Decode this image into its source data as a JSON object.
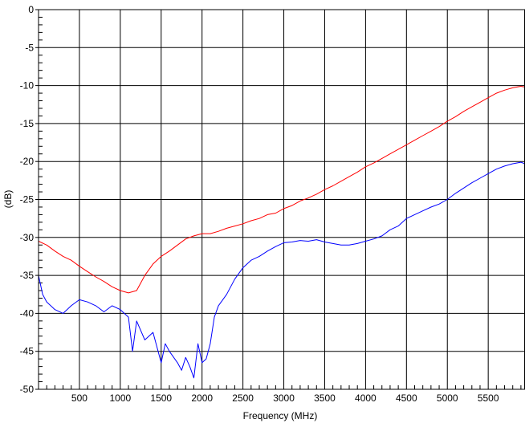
{
  "chart_data": {
    "type": "line",
    "title": "",
    "xlabel": "Frequency (MHz)",
    "ylabel": "(dB)",
    "xlim": [
      0,
      5950
    ],
    "ylim": [
      -50,
      0
    ],
    "x_ticks": [
      500,
      1000,
      1500,
      2000,
      2500,
      3000,
      3500,
      4000,
      4500,
      5000,
      5500
    ],
    "x_tick_labels": [
      "500",
      "1000",
      "1500",
      "2000",
      "2500",
      "3000",
      "3500",
      "4000",
      "4500",
      "5000",
      "5500"
    ],
    "y_ticks": [
      0,
      -5,
      -10,
      -15,
      -20,
      -25,
      -30,
      -35,
      -40,
      -45,
      -50
    ],
    "y_tick_labels": [
      "0",
      "-5",
      "-10",
      "-15",
      "-20",
      "-25",
      "-30",
      "-35",
      "-40",
      "-45",
      "-50"
    ],
    "grid": true,
    "legend": "none",
    "colors": {
      "red_series": "#ff0000",
      "blue_series": "#0000ff",
      "grid": "#000000"
    },
    "series": [
      {
        "color": "#ff0000",
        "x": [
          0,
          100,
          200,
          300,
          400,
          500,
          600,
          700,
          800,
          900,
          1000,
          1100,
          1200,
          1300,
          1400,
          1500,
          1600,
          1700,
          1800,
          1900,
          2000,
          2100,
          2200,
          2300,
          2400,
          2500,
          2600,
          2700,
          2800,
          2900,
          3000,
          3100,
          3200,
          3300,
          3400,
          3500,
          3600,
          3700,
          3800,
          3900,
          4000,
          4100,
          4200,
          4300,
          4400,
          4500,
          4600,
          4700,
          4800,
          4900,
          5000,
          5100,
          5200,
          5300,
          5400,
          5500,
          5600,
          5700,
          5800,
          5900,
          5950
        ],
        "y": [
          -30.5,
          -31.0,
          -31.8,
          -32.5,
          -33.0,
          -33.8,
          -34.5,
          -35.2,
          -35.8,
          -36.5,
          -37.0,
          -37.3,
          -37.0,
          -35.0,
          -33.5,
          -32.5,
          -31.8,
          -31.0,
          -30.2,
          -29.8,
          -29.5,
          -29.5,
          -29.2,
          -28.8,
          -28.5,
          -28.2,
          -27.8,
          -27.5,
          -27.0,
          -26.8,
          -26.2,
          -25.8,
          -25.2,
          -24.8,
          -24.3,
          -23.7,
          -23.2,
          -22.6,
          -22.0,
          -21.4,
          -20.7,
          -20.2,
          -19.6,
          -19.0,
          -18.4,
          -17.8,
          -17.2,
          -16.6,
          -16.0,
          -15.4,
          -14.7,
          -14.1,
          -13.4,
          -12.8,
          -12.2,
          -11.6,
          -11.0,
          -10.6,
          -10.3,
          -10.1,
          -10.2
        ]
      },
      {
        "color": "#0000ff",
        "x": [
          0,
          50,
          100,
          200,
          300,
          400,
          500,
          600,
          700,
          800,
          900,
          1000,
          1100,
          1150,
          1200,
          1300,
          1400,
          1500,
          1550,
          1600,
          1700,
          1750,
          1800,
          1850,
          1900,
          1950,
          2000,
          2050,
          2100,
          2150,
          2200,
          2300,
          2400,
          2500,
          2600,
          2700,
          2800,
          2900,
          3000,
          3100,
          3200,
          3300,
          3400,
          3500,
          3600,
          3700,
          3800,
          3900,
          4000,
          4100,
          4200,
          4300,
          4400,
          4500,
          4600,
          4700,
          4800,
          4900,
          5000,
          5100,
          5200,
          5300,
          5400,
          5500,
          5600,
          5700,
          5800,
          5900,
          5950
        ],
        "y": [
          -35.0,
          -37.5,
          -38.5,
          -39.5,
          -40.0,
          -39.0,
          -38.2,
          -38.5,
          -39.0,
          -39.8,
          -39.0,
          -39.5,
          -40.5,
          -45.0,
          -41.0,
          -43.5,
          -42.5,
          -46.5,
          -44.0,
          -45.0,
          -46.5,
          -47.5,
          -45.8,
          -47.0,
          -48.5,
          -44.0,
          -46.5,
          -46.0,
          -44.0,
          -40.5,
          -39.0,
          -37.5,
          -35.5,
          -34.0,
          -33.0,
          -32.5,
          -31.8,
          -31.2,
          -30.7,
          -30.6,
          -30.4,
          -30.5,
          -30.3,
          -30.6,
          -30.8,
          -31.0,
          -31.0,
          -30.8,
          -30.5,
          -30.2,
          -29.8,
          -29.0,
          -28.5,
          -27.5,
          -27.0,
          -26.5,
          -26.0,
          -25.6,
          -25.0,
          -24.2,
          -23.5,
          -22.8,
          -22.2,
          -21.6,
          -21.0,
          -20.6,
          -20.3,
          -20.1,
          -20.3
        ]
      }
    ]
  }
}
